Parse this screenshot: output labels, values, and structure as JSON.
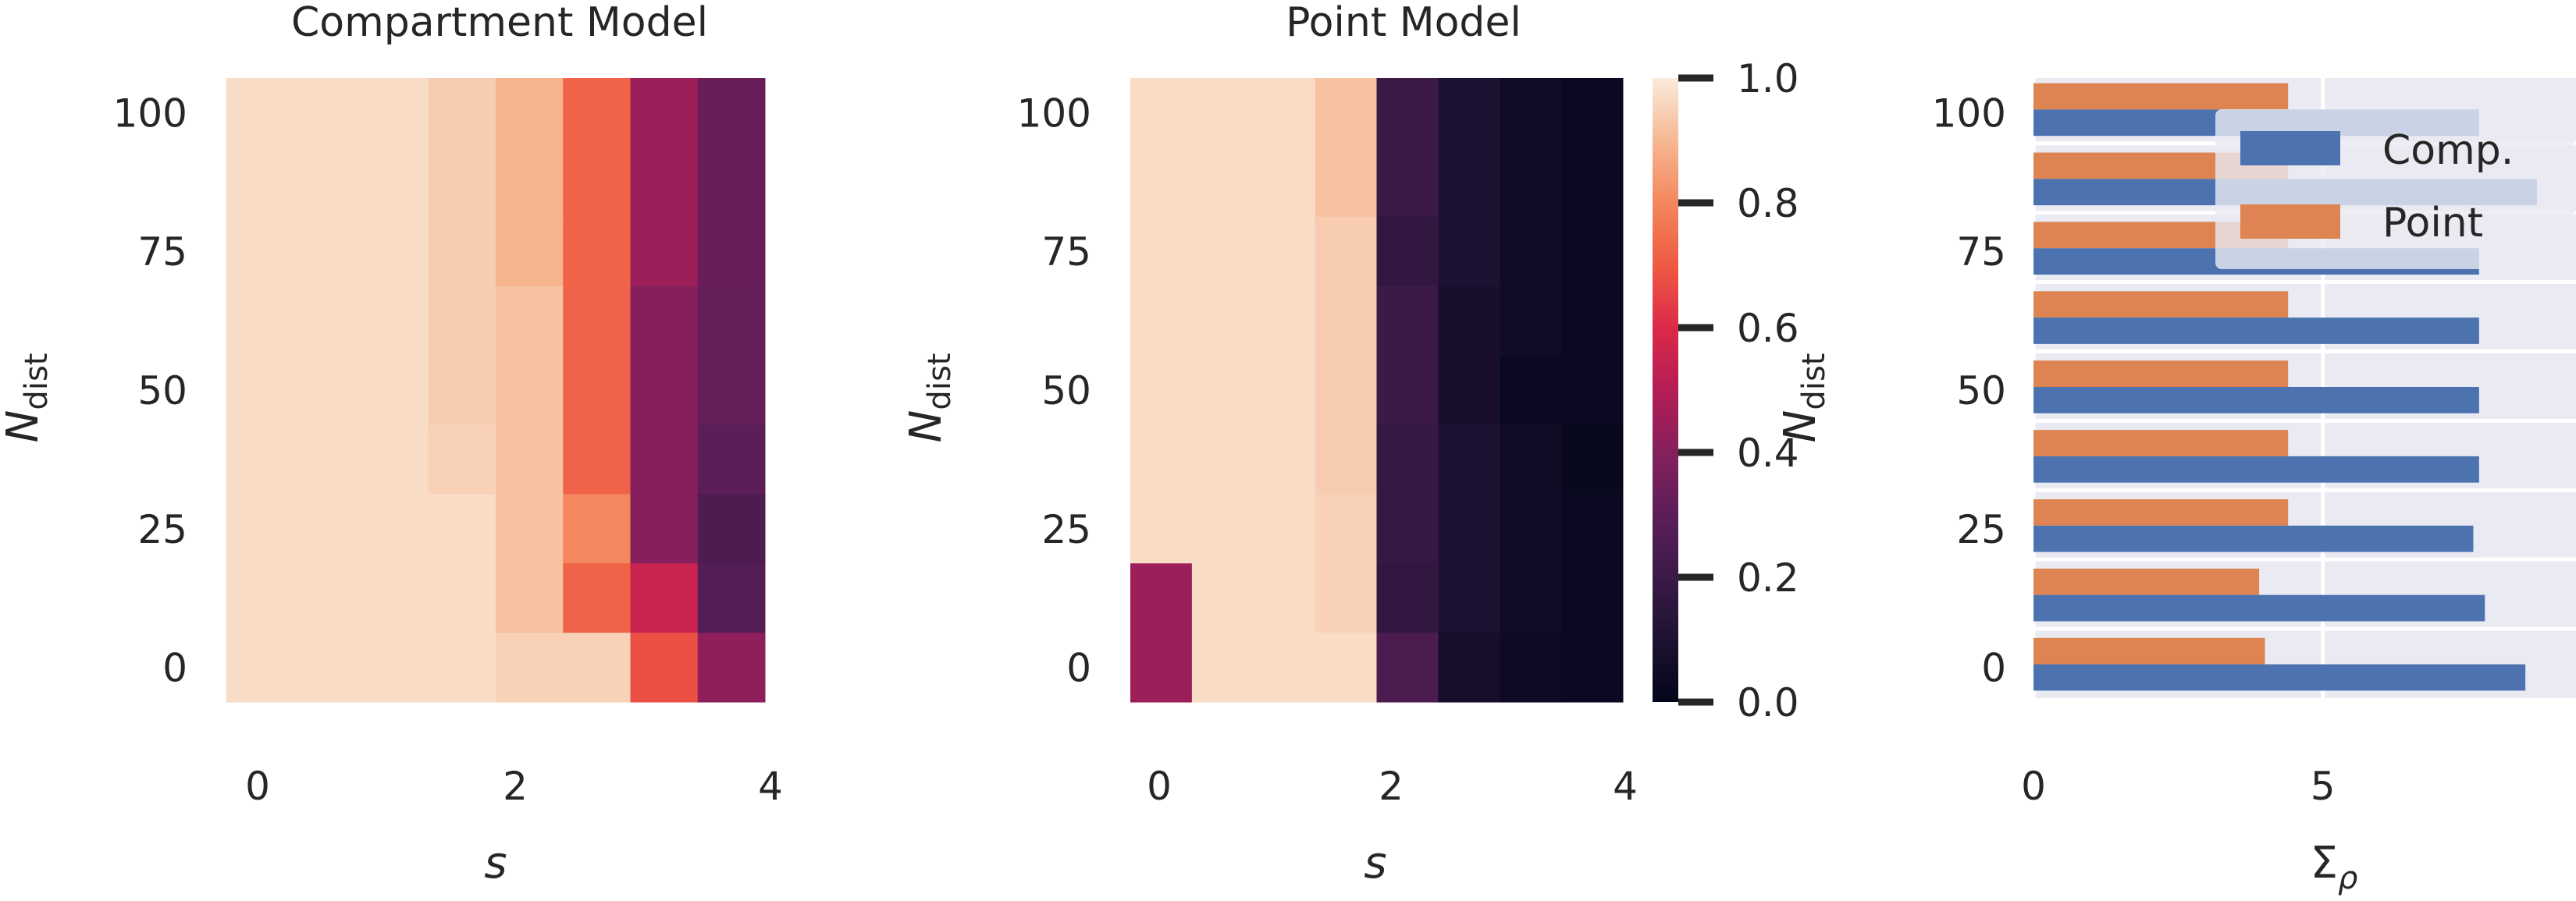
{
  "panels": {
    "left_title": "Compartment Model",
    "middle_title": "Point Model"
  },
  "axes": {
    "x_heatmap": "s",
    "y_main": "N",
    "y_sub": "dist",
    "x_bar_main": "Σ",
    "x_bar_sub": "ρ"
  },
  "colors": {
    "comp": "#4c72b0",
    "point": "#dd8452",
    "facet_bg": "#eaeaf2"
  },
  "chart_data": [
    {
      "type": "heatmap",
      "title": "Compartment Model",
      "xlabel": "s",
      "ylabel": "N_dist",
      "x": [
        0,
        0.5,
        1,
        1.5,
        2,
        2.5,
        3,
        3.5
      ],
      "y": [
        100,
        87.5,
        75,
        62.5,
        50,
        37.5,
        25,
        12.5,
        0
      ],
      "x_ticks": [
        "0",
        "2",
        "4"
      ],
      "y_ticks": [
        "0",
        "25",
        "50",
        "75",
        "100"
      ],
      "values": [
        [
          0.97,
          0.97,
          0.97,
          0.94,
          0.89,
          0.72,
          0.45,
          0.33
        ],
        [
          0.97,
          0.97,
          0.97,
          0.94,
          0.89,
          0.72,
          0.45,
          0.33
        ],
        [
          0.97,
          0.97,
          0.97,
          0.94,
          0.89,
          0.72,
          0.45,
          0.33
        ],
        [
          0.97,
          0.97,
          0.97,
          0.94,
          0.92,
          0.72,
          0.4,
          0.32
        ],
        [
          0.97,
          0.97,
          0.97,
          0.94,
          0.92,
          0.72,
          0.4,
          0.32
        ],
        [
          0.97,
          0.97,
          0.97,
          0.95,
          0.92,
          0.72,
          0.4,
          0.3
        ],
        [
          0.97,
          0.97,
          0.97,
          0.97,
          0.92,
          0.8,
          0.4,
          0.26
        ],
        [
          0.97,
          0.97,
          0.97,
          0.97,
          0.92,
          0.72,
          0.55,
          0.28
        ],
        [
          0.97,
          0.97,
          0.97,
          0.97,
          0.95,
          0.95,
          0.68,
          0.42
        ]
      ]
    },
    {
      "type": "heatmap",
      "title": "Point Model",
      "xlabel": "s",
      "ylabel": "N_dist",
      "x": [
        0,
        0.5,
        1,
        1.5,
        2,
        2.5,
        3,
        3.5
      ],
      "y": [
        100,
        87.5,
        75,
        62.5,
        50,
        37.5,
        25,
        12.5,
        0
      ],
      "x_ticks": [
        "0",
        "2",
        "4"
      ],
      "y_ticks": [
        "0",
        "25",
        "50",
        "75",
        "100"
      ],
      "values": [
        [
          0.97,
          0.97,
          0.97,
          0.92,
          0.2,
          0.1,
          0.05,
          0.03
        ],
        [
          0.97,
          0.97,
          0.97,
          0.92,
          0.2,
          0.1,
          0.05,
          0.03
        ],
        [
          0.97,
          0.97,
          0.97,
          0.94,
          0.17,
          0.1,
          0.05,
          0.03
        ],
        [
          0.97,
          0.97,
          0.97,
          0.94,
          0.2,
          0.08,
          0.05,
          0.03
        ],
        [
          0.97,
          0.97,
          0.97,
          0.94,
          0.2,
          0.08,
          0.03,
          0.03
        ],
        [
          0.97,
          0.97,
          0.97,
          0.94,
          0.18,
          0.1,
          0.05,
          0.02
        ],
        [
          0.97,
          0.97,
          0.97,
          0.95,
          0.18,
          0.1,
          0.05,
          0.03
        ],
        [
          0.45,
          0.97,
          0.97,
          0.95,
          0.17,
          0.1,
          0.05,
          0.03
        ],
        [
          0.45,
          0.97,
          0.97,
          0.97,
          0.25,
          0.07,
          0.04,
          0.03
        ]
      ],
      "colorbar": {
        "ticks": [
          "0.0",
          "0.2",
          "0.4",
          "0.6",
          "0.8",
          "1.0"
        ],
        "range": [
          0,
          1
        ]
      }
    },
    {
      "type": "bar",
      "orientation": "horizontal",
      "xlabel": "Σ_ρ",
      "ylabel": "N_dist",
      "categories": [
        100,
        87.5,
        75,
        62.5,
        50,
        37.5,
        25,
        12.5,
        0
      ],
      "y_ticks": [
        "0",
        "25",
        "50",
        "75",
        "100"
      ],
      "x_ticks": [
        "0",
        "5"
      ],
      "xlim": [
        0,
        9
      ],
      "legend": "top-right",
      "grid": true,
      "series": [
        {
          "name": "Point",
          "values": [
            4.4,
            4.4,
            4.4,
            4.4,
            4.4,
            4.4,
            4.4,
            3.9,
            4.0
          ]
        },
        {
          "name": "Comp.",
          "values": [
            7.7,
            8.7,
            7.7,
            7.7,
            7.7,
            7.7,
            7.6,
            7.8,
            8.5
          ]
        }
      ]
    }
  ]
}
